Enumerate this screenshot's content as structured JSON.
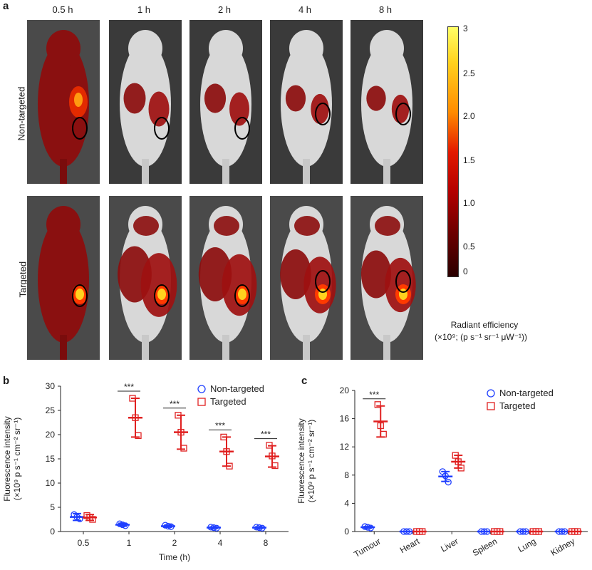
{
  "panel_a": {
    "letter": "a",
    "time_points": [
      "0.5 h",
      "1 h",
      "2 h",
      "4 h",
      "8 h"
    ],
    "row_labels": [
      "Non-targeted",
      "Targeted"
    ],
    "colorbar": {
      "ticks": [
        "3",
        "2.5",
        "2.0",
        "1.5",
        "1.0",
        "0.5",
        "0"
      ],
      "title_line1": "Radiant efficiency",
      "title_line2": "(×10⁹; (p s⁻¹ sr⁻¹ μW⁻¹))",
      "colors": [
        "#ffff66",
        "#ffd21e",
        "#ff8c00",
        "#e31a00",
        "#9e0000",
        "#5a0000",
        "#300000"
      ]
    }
  },
  "chart_data": [
    {
      "panel": "b",
      "type": "scatter",
      "xlabel": "Time (h)",
      "ylabel": "Fluorescence intensity",
      "ylabel2": "(×10⁹ p s⁻¹ cm⁻² sr⁻¹)",
      "categories": [
        "0.5",
        "1",
        "2",
        "4",
        "8"
      ],
      "ylim": [
        0,
        30
      ],
      "yticks": [
        "0",
        "5",
        "10",
        "15",
        "20",
        "25",
        "30"
      ],
      "series": [
        {
          "name": "Non-targeted",
          "color": "#1f3fff",
          "marker": "circle",
          "mean": [
            3.0,
            1.4,
            1.1,
            0.8,
            0.8
          ],
          "sd": [
            0.7,
            0.3,
            0.2,
            0.15,
            0.15
          ],
          "points": [
            [
              3.5,
              2.6,
              3.0
            ],
            [
              1.6,
              1.2,
              1.4
            ],
            [
              1.3,
              1.0,
              1.1
            ],
            [
              0.9,
              0.7,
              0.8
            ],
            [
              0.9,
              0.7,
              0.8
            ]
          ]
        },
        {
          "name": "Targeted",
          "color": "#e02020",
          "marker": "square",
          "mean": [
            2.9,
            23.5,
            20.5,
            16.5,
            15.5
          ],
          "sd": [
            0.6,
            4.0,
            3.5,
            3.0,
            2.2
          ],
          "points": [
            [
              3.3,
              2.5,
              2.9
            ],
            [
              27.5,
              19.8,
              23.5
            ],
            [
              24.0,
              17.2,
              20.5
            ],
            [
              19.5,
              13.5,
              16.5
            ],
            [
              17.8,
              13.6,
              15.6
            ]
          ]
        }
      ],
      "significance": [
        {
          "category": "1",
          "label": "***"
        },
        {
          "category": "2",
          "label": "***"
        },
        {
          "category": "4",
          "label": "***"
        },
        {
          "category": "8",
          "label": "***"
        }
      ]
    },
    {
      "panel": "c",
      "type": "scatter",
      "xlabel": "",
      "ylabel": "Fluorescence intensity",
      "ylabel2": "(×10⁹ p s⁻¹ cm⁻² sr⁻¹)",
      "categories": [
        "Tumour",
        "Heart",
        "Liver",
        "Spleen",
        "Lung",
        "Kidney"
      ],
      "ylim": [
        0,
        20
      ],
      "yticks": [
        "0",
        "4",
        "8",
        "12",
        "16",
        "20"
      ],
      "series": [
        {
          "name": "Non-targeted",
          "color": "#1f3fff",
          "marker": "circle",
          "mean": [
            0.6,
            0.0,
            7.8,
            0.0,
            0.0,
            0.0
          ],
          "sd": [
            0.1,
            0.0,
            0.7,
            0.0,
            0.0,
            0.0
          ],
          "points": [
            [
              0.7,
              0.5,
              0.6
            ],
            [
              0.0,
              0.0,
              0.0
            ],
            [
              8.5,
              7.0,
              7.9
            ],
            [
              0.0,
              0.0,
              0.0
            ],
            [
              0.0,
              0.0,
              0.0
            ],
            [
              0.0,
              0.0,
              0.0
            ]
          ]
        },
        {
          "name": "Targeted",
          "color": "#e02020",
          "marker": "square",
          "mean": [
            15.6,
            0.0,
            9.9,
            0.0,
            0.0,
            0.0
          ],
          "sd": [
            2.2,
            0.0,
            0.9,
            0.0,
            0.0,
            0.0
          ],
          "points": [
            [
              18.0,
              13.8,
              15.0
            ],
            [
              0.0,
              0.0,
              0.0
            ],
            [
              10.8,
              9.0,
              9.9
            ],
            [
              0.0,
              0.0,
              0.0
            ],
            [
              0.0,
              0.0,
              0.0
            ],
            [
              0.0,
              0.0,
              0.0
            ]
          ]
        }
      ],
      "significance": [
        {
          "category": "Tumour",
          "label": "***"
        }
      ]
    }
  ],
  "panel_b": {
    "letter": "b"
  },
  "panel_c": {
    "letter": "c"
  }
}
